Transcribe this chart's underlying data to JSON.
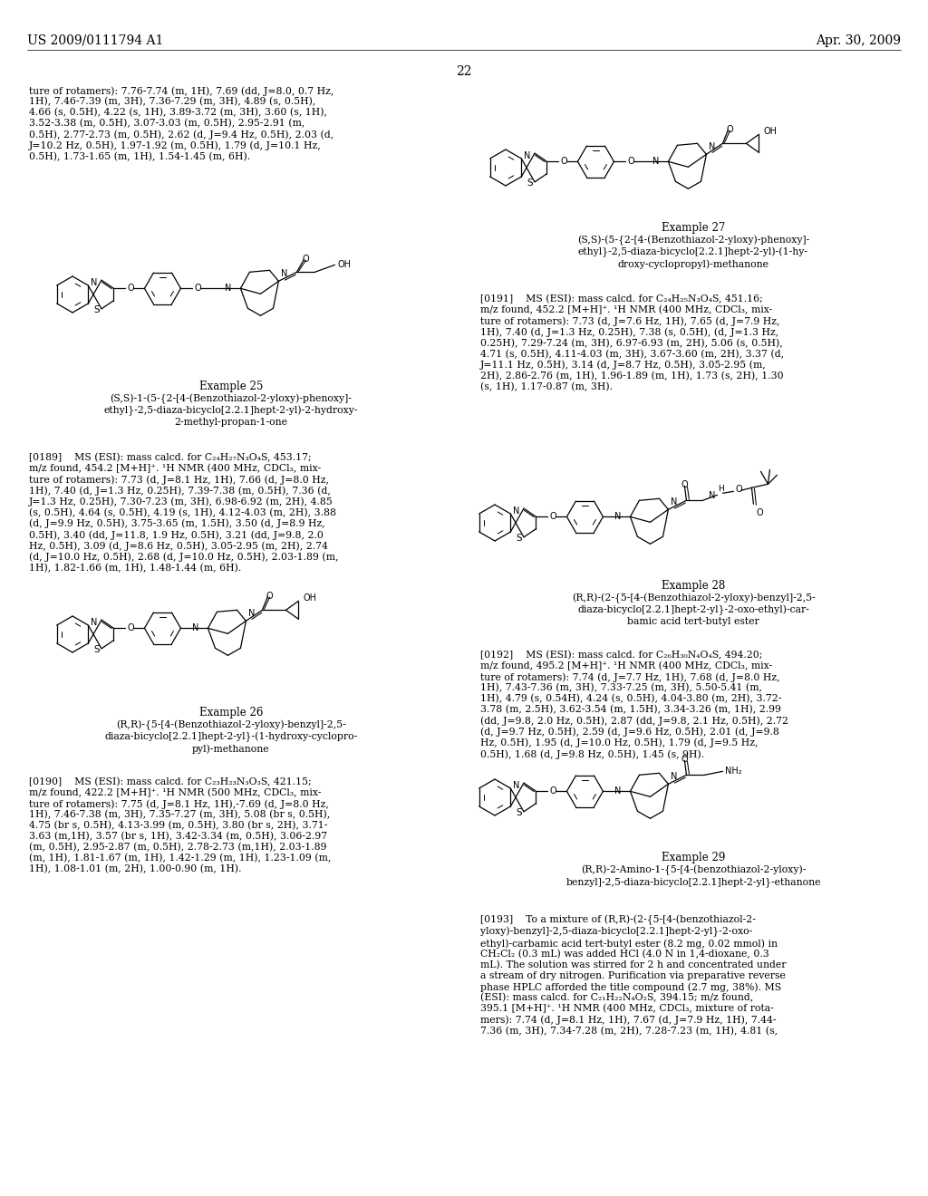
{
  "background_color": "#ffffff",
  "header_left": "US 2009/0111794 A1",
  "header_right": "Apr. 30, 2009",
  "page_number": "22",
  "continuation_text": "ture of rotamers): 7.76-7.74 (m, 1H), 7.69 (dd, J=8.0, 0.7 Hz,\n1H), 7.46-7.39 (m, 3H), 7.36-7.29 (m, 3H), 4.89 (s, 0.5H),\n4.66 (s, 0.5H), 4.22 (s, 1H), 3.89-3.72 (m, 3H), 3.60 (s, 1H),\n3.52-3.38 (m, 0.5H), 3.07-3.03 (m, 0.5H), 2.95-2.91 (m,\n0.5H), 2.77-2.73 (m, 0.5H), 2.62 (d, J=9.4 Hz, 0.5H), 2.03 (d,\nJ=10.2 Hz, 0.5H), 1.97-1.92 (m, 0.5H), 1.79 (d, J=10.1 Hz,\n0.5H), 1.73-1.65 (m, 1H), 1.54-1.45 (m, 6H).",
  "example25_title": "Example 25",
  "example25_name": "(S,S)-1-(5-{2-[4-(Benzothiazol-2-yloxy)-phenoxy]-\nethyl}-2,5-diaza-bicyclo[2.2.1]hept-2-yl)-2-hydroxy-\n2-methyl-propan-1-one",
  "example25_text": "[0189]    MS (ESI): mass calcd. for C₂₄H₂₇N₃O₄S, 453.17;\nm/z found, 454.2 [M+H]⁺. ¹H NMR (400 MHz, CDCl₃, mix-\nture of rotamers): 7.73 (d, J=8.1 Hz, 1H), 7.66 (d, J=8.0 Hz,\n1H), 7.40 (d, J=1.3 Hz, 0.25H), 7.39-7.38 (m, 0.5H), 7.36 (d,\nJ=1.3 Hz, 0.25H), 7.30-7.23 (m, 3H), 6.98-6.92 (m, 2H), 4.85\n(s, 0.5H), 4.64 (s, 0.5H), 4.19 (s, 1H), 4.12-4.03 (m, 2H), 3.88\n(d, J=9.9 Hz, 0.5H), 3.75-3.65 (m, 1.5H), 3.50 (d, J=8.9 Hz,\n0.5H), 3.40 (dd, J=11.8, 1.9 Hz, 0.5H), 3.21 (dd, J=9.8, 2.0\nHz, 0.5H), 3.09 (d, J=8.6 Hz, 0.5H), 3.05-2.95 (m, 2H), 2.74\n(d, J=10.0 Hz, 0.5H), 2.68 (d, J=10.0 Hz, 0.5H), 2.03-1.89 (m,\n1H), 1.82-1.66 (m, 1H), 1.48-1.44 (m, 6H).",
  "example26_title": "Example 26",
  "example26_name": "(R,R)-{5-[4-(Benzothiazol-2-yloxy)-benzyl]-2,5-\ndiaza-bicyclo[2.2.1]hept-2-yl}-(1-hydroxy-cyclopro-\npyl)-methanone",
  "example26_text": "[0190]    MS (ESI): mass calcd. for C₂₃H₂₃N₃O₃S, 421.15;\nm/z found, 422.2 [M+H]⁺. ¹H NMR (500 MHz, CDCl₃, mix-\nture of rotamers): 7.75 (d, J=8.1 Hz, 1H),-7.69 (d, J=8.0 Hz,\n1H), 7.46-7.38 (m, 3H), 7.35-7.27 (m, 3H), 5.08 (br s, 0.5H),\n4.75 (br s, 0.5H), 4.13-3.99 (m, 0.5H), 3.80 (br s, 2H), 3.71-\n3.63 (m,1H), 3.57 (br s, 1H), 3.42-3.34 (m, 0.5H), 3.06-2.97\n(m, 0.5H), 2.95-2.87 (m, 0.5H), 2.78-2.73 (m,1H), 2.03-1.89\n(m, 1H), 1.81-1.67 (m, 1H), 1.42-1.29 (m, 1H), 1.23-1.09 (m,\n1H), 1.08-1.01 (m, 2H), 1.00-0.90 (m, 1H).",
  "example27_title": "Example 27",
  "example27_name": "(S,S)-(5-{2-[4-(Benzothiazol-2-yloxy)-phenoxy]-\nethyl}-2,5-diaza-bicyclo[2.2.1]hept-2-yl)-(1-hy-\ndroxy-cyclopropyl)-methanone",
  "example27_text": "[0191]    MS (ESI): mass calcd. for C₂₄H₂₅N₃O₄S, 451.16;\nm/z found, 452.2 [M+H]⁺. ¹H NMR (400 MHz, CDCl₃, mix-\nture of rotamers): 7.73 (d, J=7.6 Hz, 1H), 7.65 (d, J=7.9 Hz,\n1H), 7.40 (d, J=1.3 Hz, 0.25H), 7.38 (s, 0.5H), (d, J=1.3 Hz,\n0.25H), 7.29-7.24 (m, 3H), 6.97-6.93 (m, 2H), 5.06 (s, 0.5H),\n4.71 (s, 0.5H), 4.11-4.03 (m, 3H), 3.67-3.60 (m, 2H), 3.37 (d,\nJ=11.1 Hz, 0.5H), 3.14 (d, J=8.7 Hz, 0.5H), 3.05-2.95 (m,\n2H), 2.86-2.76 (m, 1H), 1.96-1.89 (m, 1H), 1.73 (s, 2H), 1.30\n(s, 1H), 1.17-0.87 (m, 3H).",
  "example28_title": "Example 28",
  "example28_name": "(R,R)-(2-{5-[4-(Benzothiazol-2-yloxy)-benzyl]-2,5-\ndiaza-bicyclo[2.2.1]hept-2-yl}-2-oxo-ethyl)-car-\nbamic acid tert-butyl ester",
  "example28_text": "[0192]    MS (ESI): mass calcd. for C₂₆H₃₀N₄O₄S, 494.20;\nm/z found, 495.2 [M+H]⁺. ¹H NMR (400 MHz, CDCl₃, mix-\nture of rotamers): 7.74 (d, J=7.7 Hz, 1H), 7.68 (d, J=8.0 Hz,\n1H), 7.43-7.36 (m, 3H), 7.33-7.25 (m, 3H), 5.50-5.41 (m,\n1H), 4.79 (s, 0.54H), 4.24 (s, 0.5H), 4.04-3.80 (m, 2H), 3.72-\n3.78 (m, 2.5H), 3.62-3.54 (m, 1.5H), 3.34-3.26 (m, 1H), 2.99\n(dd, J=9.8, 2.0 Hz, 0.5H), 2.87 (dd, J=9.8, 2.1 Hz, 0.5H), 2.72\n(d, J=9.7 Hz, 0.5H), 2.59 (d, J=9.6 Hz, 0.5H), 2.01 (d, J=9.8\nHz, 0.5H), 1.95 (d, J=10.0 Hz, 0.5H), 1.79 (d, J=9.5 Hz,\n0.5H), 1.68 (d, J=9.8 Hz, 0.5H), 1.45 (s, 9H).",
  "example29_title": "Example 29",
  "example29_name": "(R,R)-2-Amino-1-{5-[4-(benzothiazol-2-yloxy)-\nbenzyl]-2,5-diaza-bicyclo[2.2.1]hept-2-yl}-ethanone",
  "example29_text": "[0193]    To a mixture of (R,R)-(2-{5-[4-(benzothiazol-2-\nyloxy)-benzyl]-2,5-diaza-bicyclo[2.2.1]hept-2-yl}-2-oxo-\nethyl)-carbamic acid tert-butyl ester (8.2 mg, 0.02 mmol) in\nCH₂Cl₂ (0.3 mL) was added HCl (4.0 N in 1,4-dioxane, 0.3\nmL). The solution was stirred for 2 h and concentrated under\na stream of dry nitrogen. Purification via preparative reverse\nphase HPLC afforded the title compound (2.7 mg, 38%). MS\n(ESI): mass calcd. for C₂₁H₂₂N₄O₂S, 394.15; m/z found,\n395.1 [M+H]⁺. ¹H NMR (400 MHz, CDCl₃, mixture of rota-\nmers): 7.74 (d, J=8.1 Hz, 1H), 7.67 (d, J=7.9 Hz, 1H), 7.44-\n7.36 (m, 3H), 7.34-7.28 (m, 2H), 7.28-7.23 (m, 1H), 4.81 (s,"
}
